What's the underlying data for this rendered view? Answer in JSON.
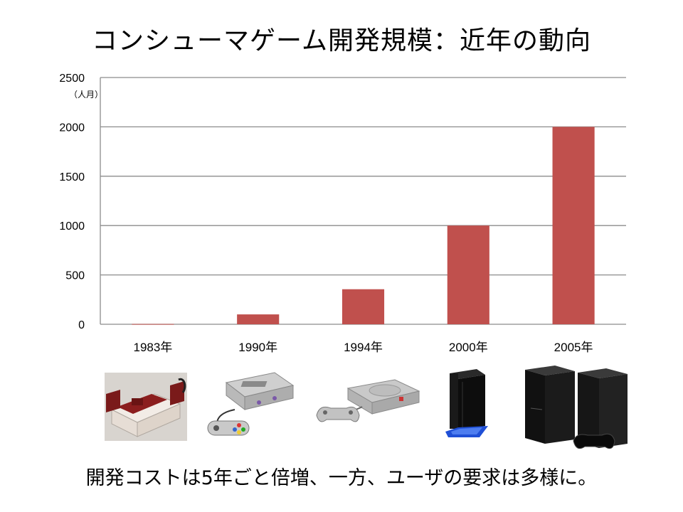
{
  "slide": {
    "title": "コンシューマゲーム開発規模：近年の動向",
    "caption": "開発コストは5年ごと倍増、一方、ユーザの要求は多様に。"
  },
  "chart_data": {
    "type": "bar",
    "title": "",
    "xlabel": "",
    "ylabel": "（人月）",
    "categories": [
      "1983年",
      "1990年",
      "1994年",
      "2000年",
      "2005年"
    ],
    "values": [
      3,
      100,
      355,
      1000,
      2000
    ],
    "ylim": [
      0,
      2500
    ],
    "yticks": [
      0,
      500,
      1000,
      1500,
      2000,
      2500
    ],
    "grid": true,
    "legend": "none",
    "bar_color": "#c0504d",
    "grid_color": "#8c8c8c"
  },
  "images": [
    {
      "icon": "famicom-console-icon"
    },
    {
      "icon": "super-famicom-console-icon"
    },
    {
      "icon": "playstation-console-icon"
    },
    {
      "icon": "playstation2-console-icon"
    },
    {
      "icon": "playstation3-console-icon"
    }
  ]
}
